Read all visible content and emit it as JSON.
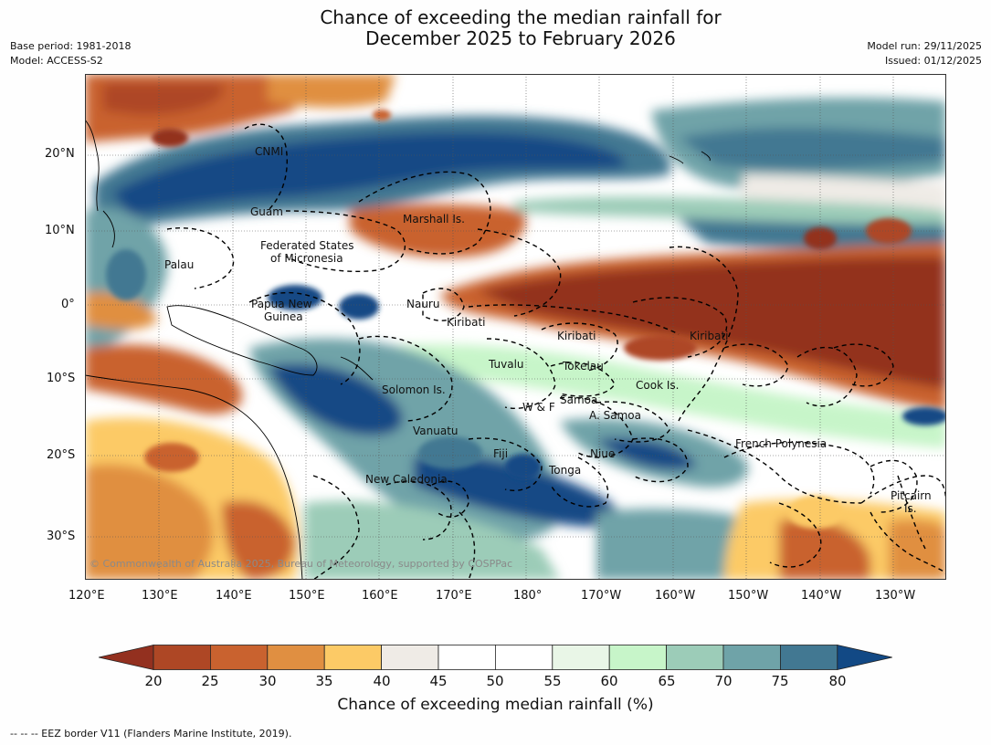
{
  "title": {
    "line1": "Chance of exceeding the median rainfall for",
    "line2": "December 2025 to February 2026"
  },
  "meta": {
    "base_period": "Base period: 1981-2018",
    "model": "Model: ACCESS-S2",
    "model_run": "Model run: 29/11/2025",
    "issued": "Issued: 01/12/2025"
  },
  "axes": {
    "lat_labels": [
      "20°N",
      "10°N",
      "0°",
      "10°S",
      "20°S",
      "30°S"
    ],
    "lon_labels": [
      "120°E",
      "130°E",
      "140°E",
      "150°E",
      "160°E",
      "170°E",
      "180°",
      "170°W",
      "160°W",
      "150°W",
      "140°W",
      "130°W"
    ]
  },
  "places": [
    "CNMI",
    "Guam",
    "Marshall Is.",
    "Federated States",
    "of Micronesia",
    "Palau",
    "Papua New",
    "Guinea",
    "Nauru",
    "Kiribati",
    "Kiribati",
    "Kiribati",
    "Tuvalu",
    "Tokelau",
    "Cook Is.",
    "Solomon Is.",
    "W & F",
    "Samoa",
    "A. Samoa",
    "Vanuatu",
    "Fiji",
    "Niue",
    "French Polynesia",
    "New Caledonia",
    "Tonga",
    "Pitcairn",
    "Is."
  ],
  "copyright": "© Commonwealth of Australia 2025, Bureau of Meteorology, supported by COSPPac",
  "colorbar": {
    "ticks": [
      "20",
      "25",
      "30",
      "35",
      "40",
      "45",
      "50",
      "55",
      "60",
      "65",
      "70",
      "75",
      "80"
    ],
    "colors": [
      "#93301f",
      "#ae4725",
      "#c9622f",
      "#e08f41",
      "#fcca66",
      "#efebe6",
      "#ffffff",
      "#ffffff",
      "#e9f6e7",
      "#c7f5c9",
      "#9cccb8",
      "#6fa3a8",
      "#427892",
      "#124985"
    ],
    "label": "Chance of exceeding median rainfall (%)"
  },
  "legend": {
    "text": "-- -- -- EEZ border V11 (Flanders Marine Institute, 2019)."
  }
}
